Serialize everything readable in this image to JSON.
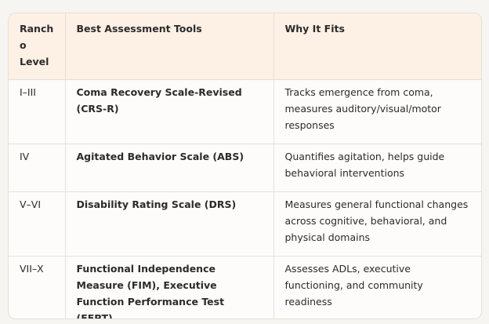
{
  "table": {
    "headers": [
      "Ranch o Level",
      "Best Assessment Tools",
      "Why It Fits"
    ],
    "rows": [
      {
        "level": "I–III",
        "tool": "Coma Recovery Scale-Revised (CRS-R)",
        "reason": "Tracks emergence from coma, measures auditory/visual/motor responses"
      },
      {
        "level": "IV",
        "tool": "Agitated Behavior Scale (ABS)",
        "reason": "Quantifies agitation, helps guide behavioral interventions"
      },
      {
        "level": "V–VI",
        "tool": "Disability Rating Scale (DRS)",
        "reason": "Measures general functional changes across cognitive, behavioral, and physical domains"
      },
      {
        "level": "VII–X",
        "tool": "Functional Independence Measure (FIM), Executive Function Performance Test (EFPT)",
        "reason": "Assesses ADLs, executive functioning, and community readiness"
      }
    ]
  }
}
